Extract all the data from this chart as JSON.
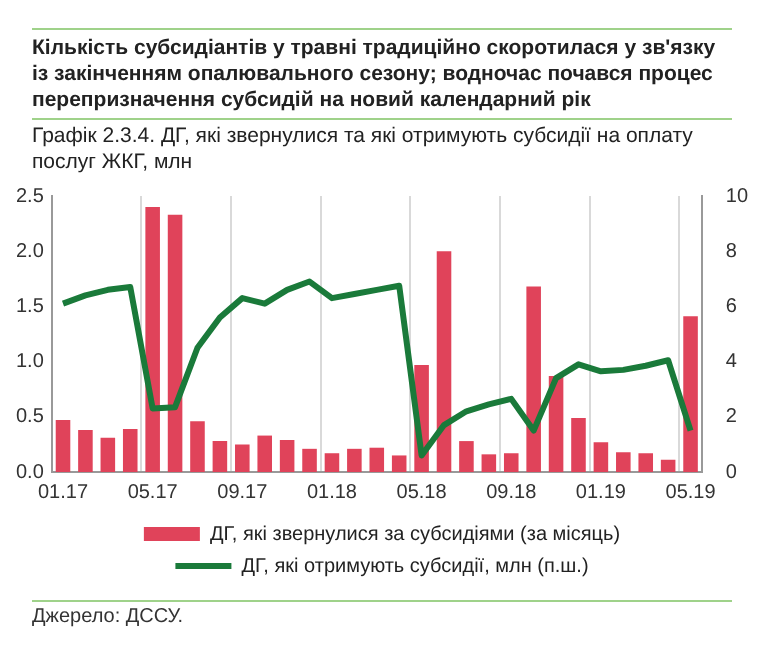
{
  "chart_data": {
    "type": "bar",
    "title": "Кількість субсидіантів у травні традиційно скоротилася у зв'язку із закінченням опалювального сезону; водночас почався процес перепризначення субсидій на новий календарний рік",
    "subtitle": "Графік 2.3.4. ДГ, які звернулися та які отримують субсидії на оплату послуг ЖКГ, млн",
    "categories": [
      "01.17",
      null,
      null,
      null,
      "05.17",
      null,
      null,
      null,
      "09.17",
      null,
      null,
      null,
      "01.18",
      null,
      null,
      null,
      "05.18",
      null,
      null,
      null,
      "09.18",
      null,
      null,
      null,
      "01.19",
      null,
      null,
      null,
      "05.19"
    ],
    "series": [
      {
        "name": "ДГ, які звернулися за субсидіями (за місяць)",
        "color": "#e0435a",
        "values": [
          0.47,
          0.38,
          0.31,
          0.39,
          2.4,
          2.33,
          0.46,
          0.28,
          0.25,
          0.33,
          0.29,
          0.21,
          0.17,
          0.21,
          0.22,
          0.15,
          0.97,
          2.0,
          0.28,
          0.16,
          0.17,
          1.68,
          0.87,
          0.49,
          0.27,
          0.18,
          0.17,
          0.11,
          1.41
        ]
      },
      {
        "name": "ДГ, які отримують субсидії, млн (п.ш.)",
        "type": "line",
        "axis": "y2",
        "color": "#1a7a3a",
        "values": [
          6.1,
          6.4,
          6.6,
          6.7,
          2.3,
          2.35,
          4.5,
          5.6,
          6.3,
          6.1,
          6.6,
          6.9,
          6.3,
          6.45,
          6.6,
          6.75,
          0.6,
          1.7,
          2.2,
          2.45,
          2.65,
          1.5,
          3.4,
          3.9,
          3.65,
          3.7,
          3.85,
          4.05,
          1.5
        ]
      }
    ],
    "ylim": [
      0,
      2.5
    ],
    "yticks": [
      {
        "value": 0,
        "label": "0.0"
      },
      0.5,
      {
        "value": 1,
        "label": "1.0"
      },
      1.5,
      {
        "value": 2,
        "label": "2.0"
      },
      2.5
    ],
    "y2lim": [
      0,
      10
    ],
    "y2ticks": [
      0,
      2,
      4,
      6,
      8,
      10
    ],
    "grid": "x",
    "legend": "bottom",
    "marker": "none",
    "annotations": [
      "Джерело: ДССУ."
    ]
  }
}
